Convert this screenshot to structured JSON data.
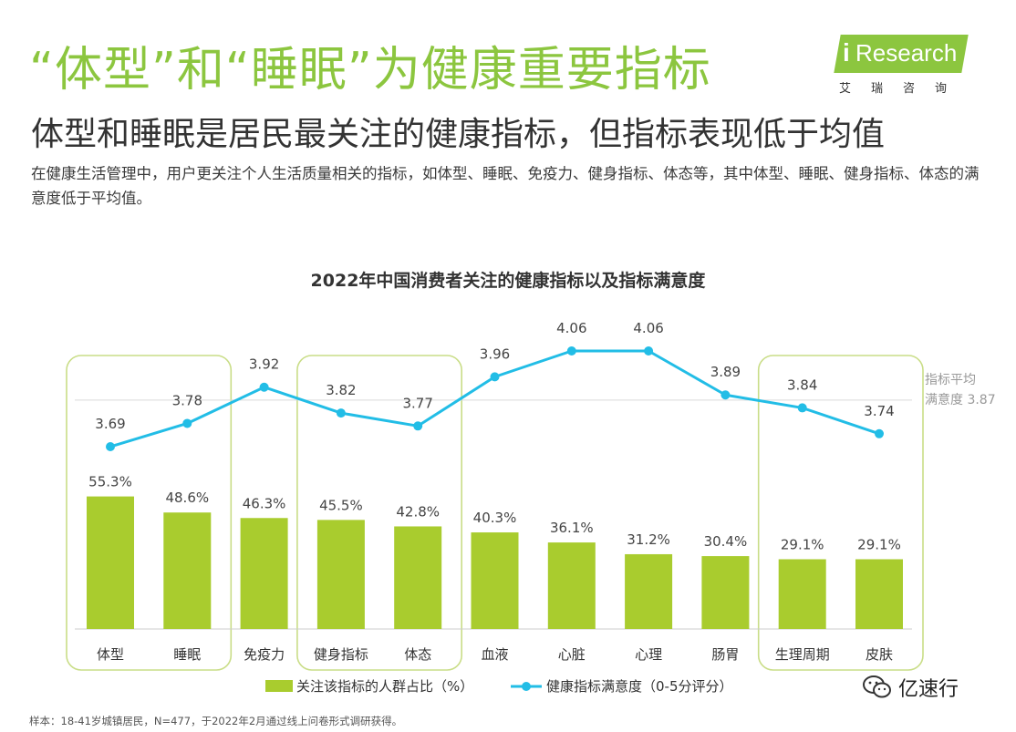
{
  "header": {
    "headline": "“体型”和“睡眠”为健康重要指标",
    "subheadline": "体型和睡眠是居民最关注的健康指标，但指标表现低于均值",
    "description": "在健康生活管理中，用户更关注个人生活质量相关的指标，如体型、睡眠、免疫力、健身指标、体态等，其中体型、睡眠、健身指标、体态的满意度低于平均值。"
  },
  "logo": {
    "i": "i",
    "word": "Research",
    "chinese": "艾瑞咨询"
  },
  "footnote": "样本：18-41岁城镇居民，N=477，于2022年2月通过线上问卷形式调研获得。",
  "watermark": {
    "text": "亿速行"
  },
  "colors": {
    "bar": "#a9cc2e",
    "line": "#22bde6",
    "highlight_box": "#c9dd87",
    "avg_line": "#d9d9d9",
    "headline": "#8cc63f"
  },
  "chart_data": {
    "type": "bar",
    "title": "2022年中国消费者关注的健康指标以及指标满意度",
    "categories": [
      "体型",
      "睡眠",
      "免疫力",
      "健身指标",
      "体态",
      "血液",
      "心脏",
      "心理",
      "肠胃",
      "生理周期",
      "皮肤"
    ],
    "series": [
      {
        "name": "关注该指标的人群占比（%）",
        "kind": "bar",
        "values": [
          55.3,
          48.6,
          46.3,
          45.5,
          42.8,
          40.3,
          36.1,
          31.2,
          30.4,
          29.1,
          29.1
        ],
        "labels": [
          "55.3%",
          "48.6%",
          "46.3%",
          "45.5%",
          "42.8%",
          "40.3%",
          "36.1%",
          "31.2%",
          "30.4%",
          "29.1%",
          "29.1%"
        ]
      },
      {
        "name": "健康指标满意度（0-5分评分）",
        "kind": "line",
        "values": [
          3.69,
          3.78,
          3.92,
          3.82,
          3.77,
          3.96,
          4.06,
          4.06,
          3.89,
          3.84,
          3.74
        ],
        "labels": [
          "3.69",
          "3.78",
          "3.92",
          "3.82",
          "3.77",
          "3.96",
          "4.06",
          "4.06",
          "3.89",
          "3.84",
          "3.74"
        ]
      }
    ],
    "average": {
      "value": 3.87,
      "label_line1": "指标平均",
      "label_line2": "满意度 3.87"
    },
    "highlight_groups": [
      [
        0,
        1
      ],
      [
        3,
        4
      ],
      [
        9,
        10
      ]
    ],
    "legend": [
      "关注该指标的人群占比（%）",
      "健康指标满意度（0-5分评分）"
    ],
    "legend_position": "bottom",
    "bar_ylim": [
      0,
      100
    ],
    "line_ylim": [
      3.4,
      4.1
    ]
  }
}
